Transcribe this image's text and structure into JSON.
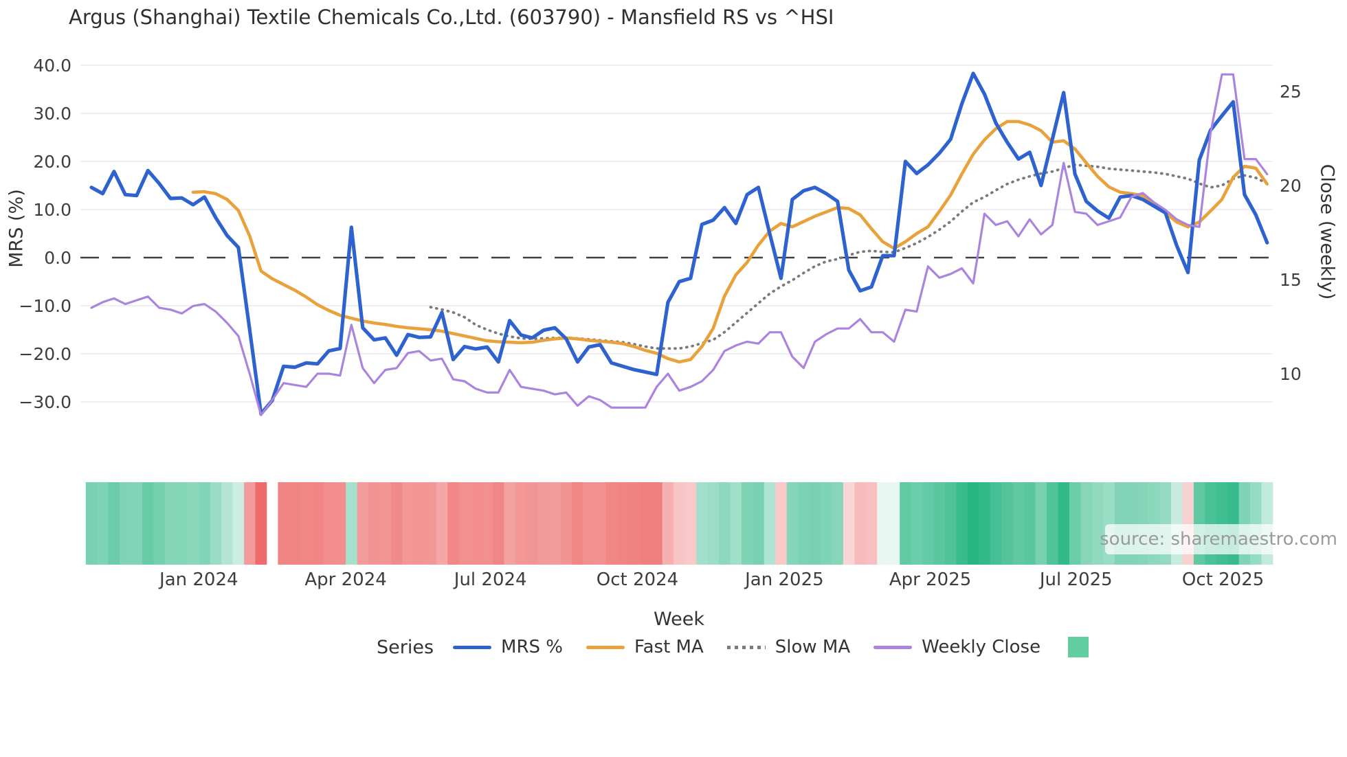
{
  "title": "Argus (Shanghai) Textile Chemicals Co.,Ltd. (603790) - Mansfield RS vs ^HSI",
  "axes": {
    "left_label": "MRS (%)",
    "right_label": "Close (weekly)",
    "x_label": "Week"
  },
  "legend": {
    "series_title": "Series",
    "entries": [
      {
        "label": "MRS %",
        "color": "#2e63cf",
        "style": "solid"
      },
      {
        "label": "Fast MA",
        "color": "#e9a23b",
        "style": "solid"
      },
      {
        "label": "Slow MA",
        "color": "#7a7a7a",
        "style": "dotted"
      },
      {
        "label": "Weekly Close",
        "color": "#ab84dd",
        "style": "solid"
      }
    ],
    "extra_square_color": "#63cda2"
  },
  "source": "source: sharemaestro.com",
  "colors": {
    "grid": "#eaeaef",
    "zero_line": "#3f3f46",
    "tick_text": "#3d3d3d",
    "heat_positive": "#26b583",
    "heat_negative": "#ec5f5f"
  },
  "chart_data": {
    "type": "line",
    "title": "Argus (Shanghai) Textile Chemicals Co.,Ltd. (603790) - Mansfield RS vs ^HSI",
    "xlabel": "Week",
    "ylabel_left": "MRS (%)",
    "ylabel_right": "Close (weekly)",
    "left_ticks": [
      40.0,
      30.0,
      20.0,
      10.0,
      0.0,
      -10.0,
      -20.0,
      -30.0
    ],
    "right_ticks": [
      25,
      20,
      15,
      10
    ],
    "x_ticks": [
      {
        "label": "Jan 2024",
        "week": 9.5
      },
      {
        "label": "Apr 2024",
        "week": 22.5
      },
      {
        "label": "Jul 2024",
        "week": 35.3
      },
      {
        "label": "Oct 2024",
        "week": 48.3
      },
      {
        "label": "Jan 2025",
        "week": 61.3
      },
      {
        "label": "Apr 2025",
        "week": 74.2
      },
      {
        "label": "Jul 2025",
        "week": 87.1
      },
      {
        "label": "Oct 2025",
        "week": 100.1
      }
    ],
    "grid": true,
    "legend_position": "bottom",
    "layout": {
      "x0": 133,
      "xstep": 16.45,
      "y_zero": 375,
      "y_per_unit_left": 7,
      "y_close20": 270,
      "y_per_unit_right": 27.4,
      "plot_x_min": 117,
      "plot_x_max": 1852,
      "heat_y": 702,
      "heat_h": 120,
      "heat_max_abs": 38
    },
    "series": [
      {
        "name": "MRS %",
        "axis": "left",
        "start_week": 0,
        "values": [
          14.6,
          13.3,
          17.9,
          13.1,
          12.9,
          18.1,
          15.4,
          12.3,
          12.4,
          11.0,
          12.6,
          8.3,
          4.6,
          2.1,
          -15.0,
          -32.5,
          -29.7,
          -22.6,
          -22.8,
          -21.9,
          -22.1,
          -19.4,
          -18.9,
          6.3,
          -14.6,
          -17.1,
          -16.7,
          -20.3,
          -16.0,
          -16.6,
          -16.5,
          -11.4,
          -21.2,
          -18.5,
          -19.0,
          -18.6,
          -21.7,
          -13.1,
          -16.1,
          -16.7,
          -15.1,
          -14.6,
          -16.9,
          -21.7,
          -18.6,
          -18.1,
          -21.9,
          -22.6,
          -23.3,
          -23.8,
          -24.3,
          -9.3,
          -5.0,
          -4.3,
          6.9,
          7.8,
          10.4,
          7.1,
          13.1,
          14.6,
          5.0,
          -4.3,
          12.1,
          13.9,
          14.6,
          13.3,
          11.7,
          -2.6,
          -6.9,
          -6.1,
          0.4,
          0.4,
          20.0,
          17.5,
          19.3,
          21.7,
          24.6,
          32.0,
          38.3,
          34.0,
          28.0,
          24.0,
          20.5,
          21.9,
          15.0,
          24.6,
          34.3,
          17.4,
          11.7,
          9.7,
          8.2,
          12.6,
          12.9,
          12.1,
          10.7,
          9.3,
          2.5,
          -3.1,
          20.3,
          26.5,
          29.5,
          32.4,
          13.1,
          8.9,
          3.1
        ]
      },
      {
        "name": "Fast MA",
        "axis": "left",
        "start_week": 9,
        "values": [
          13.6,
          13.7,
          13.3,
          12.1,
          9.8,
          4.5,
          -2.8,
          -4.4,
          -5.6,
          -6.8,
          -8.2,
          -9.8,
          -11.0,
          -12.0,
          -12.6,
          -13.2,
          -13.6,
          -13.9,
          -14.3,
          -14.6,
          -14.8,
          -15.0,
          -15.3,
          -15.8,
          -16.3,
          -16.8,
          -17.3,
          -17.5,
          -17.6,
          -17.7,
          -17.6,
          -17.2,
          -16.9,
          -16.7,
          -16.9,
          -17.2,
          -17.4,
          -17.6,
          -17.9,
          -18.5,
          -19.3,
          -19.9,
          -21.0,
          -21.7,
          -21.2,
          -18.5,
          -14.7,
          -8.0,
          -3.6,
          -1.0,
          2.6,
          5.5,
          7.1,
          6.4,
          7.5,
          8.6,
          9.5,
          10.4,
          10.2,
          8.9,
          6.0,
          3.3,
          1.9,
          3.3,
          5.0,
          6.4,
          9.6,
          13.0,
          17.4,
          21.5,
          24.5,
          26.8,
          28.3,
          28.3,
          27.6,
          26.4,
          24.0,
          24.3,
          22.6,
          19.7,
          16.9,
          14.7,
          13.6,
          13.3,
          12.9,
          11.1,
          9.3,
          7.4,
          6.4,
          7.4,
          9.7,
          12.1,
          16.7,
          19.0,
          18.6,
          15.3
        ]
      },
      {
        "name": "Slow MA",
        "axis": "left",
        "start_week": 30,
        "values": [
          -10.3,
          -10.8,
          -11.4,
          -12.4,
          -14.0,
          -15.0,
          -15.8,
          -16.4,
          -16.8,
          -16.9,
          -16.8,
          -16.7,
          -16.7,
          -16.8,
          -17.0,
          -17.2,
          -17.4,
          -17.6,
          -18.0,
          -18.5,
          -18.9,
          -18.9,
          -18.9,
          -18.5,
          -17.8,
          -17.1,
          -15.5,
          -13.5,
          -11.5,
          -9.5,
          -7.5,
          -6.0,
          -4.7,
          -3.2,
          -1.8,
          -0.8,
          -0.3,
          0.5,
          1.2,
          1.4,
          1.2,
          1.1,
          2.0,
          3.0,
          4.3,
          5.8,
          7.5,
          9.6,
          11.5,
          12.6,
          14.0,
          15.3,
          16.2,
          16.9,
          17.5,
          17.9,
          18.6,
          19.3,
          19.1,
          18.9,
          18.5,
          18.3,
          18.1,
          17.9,
          17.7,
          17.4,
          16.9,
          16.4,
          15.4,
          14.6,
          15.0,
          16.4,
          17.1,
          16.6,
          15.4
        ]
      },
      {
        "name": "Weekly Close",
        "axis": "right",
        "start_week": 0,
        "values": [
          13.5,
          13.8,
          14.0,
          13.7,
          13.9,
          14.1,
          13.5,
          13.4,
          13.2,
          13.6,
          13.7,
          13.3,
          12.7,
          12.0,
          10.0,
          7.8,
          8.6,
          9.5,
          9.4,
          9.3,
          10.0,
          10.0,
          9.9,
          12.6,
          10.3,
          9.5,
          10.2,
          10.3,
          11.1,
          11.2,
          10.7,
          10.8,
          9.7,
          9.6,
          9.2,
          9.0,
          9.0,
          10.2,
          9.3,
          9.2,
          9.1,
          8.9,
          9.0,
          8.3,
          8.8,
          8.6,
          8.2,
          8.2,
          8.2,
          8.2,
          9.3,
          10.0,
          9.1,
          9.3,
          9.6,
          10.2,
          11.2,
          11.5,
          11.7,
          11.6,
          12.2,
          12.2,
          10.9,
          10.3,
          11.7,
          12.1,
          12.4,
          12.4,
          12.9,
          12.2,
          12.2,
          11.7,
          13.4,
          13.3,
          15.7,
          15.1,
          15.3,
          15.6,
          14.8,
          18.5,
          17.9,
          18.1,
          17.3,
          18.2,
          17.4,
          17.9,
          21.2,
          18.6,
          18.5,
          17.9,
          18.1,
          18.3,
          19.4,
          19.6,
          19.1,
          18.7,
          18.2,
          17.9,
          17.8,
          22.8,
          25.9,
          25.9,
          21.4,
          21.4,
          20.6
        ]
      }
    ],
    "heatmap": {
      "source_series": "MRS %",
      "gap_weeks": [
        16
      ]
    }
  }
}
